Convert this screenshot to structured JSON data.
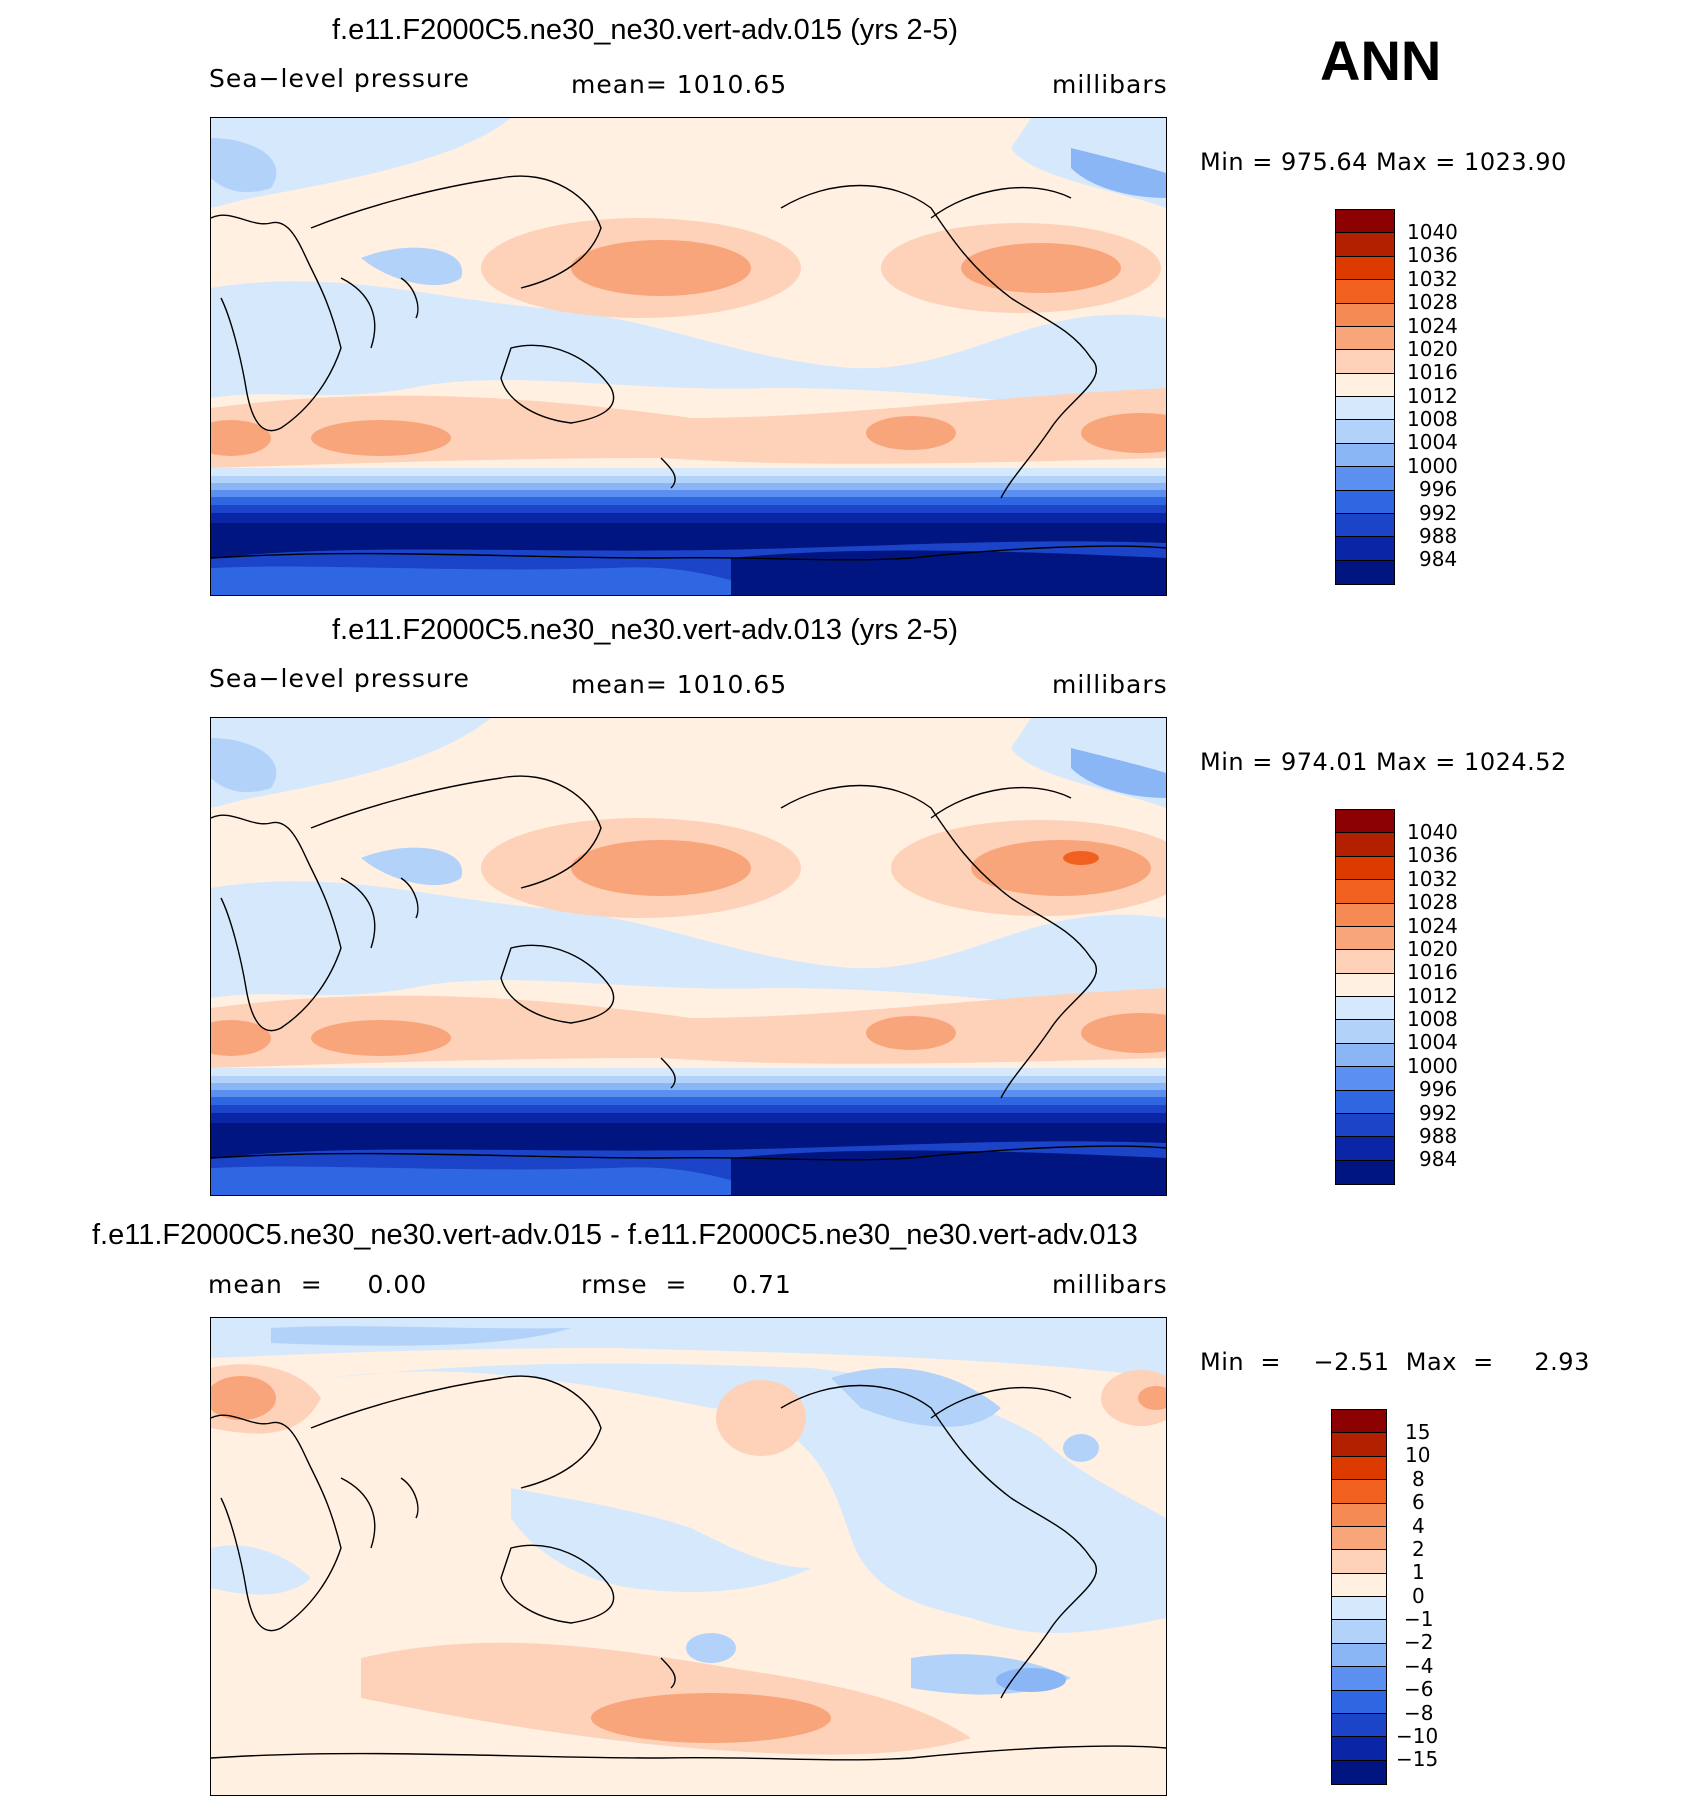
{
  "season": "ANN",
  "panels": [
    {
      "title": "f.e11.F2000C5.ne30_ne30.vert-adv.015 (yrs 2-5)",
      "left_label": "Sea−level pressure",
      "center_label": "mean=  1010.65",
      "units": "millibars",
      "minmax": "Min  =  975.64  Max  =  1023.90",
      "levels": [
        "1040",
        "1036",
        "1032",
        "1028",
        "1024",
        "1020",
        "1016",
        "1012",
        "1008",
        "1004",
        "1000",
        "996",
        "992",
        "988",
        "984"
      ],
      "colors": [
        "#8b0000",
        "#b22000",
        "#dd3a00",
        "#f26020",
        "#f58a55",
        "#f9a57c",
        "#fdd2b8",
        "#fff0e2",
        "#d6e9fc",
        "#b3d2fa",
        "#8ab6f6",
        "#5b8ff0",
        "#2f67e3",
        "#1b44c9",
        "#0a25a6",
        "#001580"
      ]
    },
    {
      "title": "f.e11.F2000C5.ne30_ne30.vert-adv.013 (yrs 2-5)",
      "left_label": "Sea−level pressure",
      "center_label": "mean=  1010.65",
      "units": "millibars",
      "minmax": "Min  =  974.01  Max  =  1024.52",
      "levels": [
        "1040",
        "1036",
        "1032",
        "1028",
        "1024",
        "1020",
        "1016",
        "1012",
        "1008",
        "1004",
        "1000",
        "996",
        "992",
        "988",
        "984"
      ],
      "colors": [
        "#8b0000",
        "#b22000",
        "#dd3a00",
        "#f26020",
        "#f58a55",
        "#f9a57c",
        "#fdd2b8",
        "#fff0e2",
        "#d6e9fc",
        "#b3d2fa",
        "#8ab6f6",
        "#5b8ff0",
        "#2f67e3",
        "#1b44c9",
        "#0a25a6",
        "#001580"
      ]
    },
    {
      "title": "f.e11.F2000C5.ne30_ne30.vert-adv.015 - f.e11.F2000C5.ne30_ne30.vert-adv.013",
      "left_label": "mean  =     0.00",
      "center_label": "rmse  =     0.71",
      "units": "millibars",
      "minmax": "Min  =    −2.51  Max  =     2.93",
      "levels": [
        "15",
        "10",
        "8",
        "6",
        "4",
        "2",
        "1",
        "0",
        "−1",
        "−2",
        "−4",
        "−6",
        "−8",
        "−10",
        "−15"
      ],
      "colors": [
        "#8b0000",
        "#b22000",
        "#dd3a00",
        "#f26020",
        "#f58a55",
        "#f9a57c",
        "#fdd2b8",
        "#fff0e2",
        "#d6e9fc",
        "#b3d2fa",
        "#8ab6f6",
        "#5b8ff0",
        "#2f67e3",
        "#1b44c9",
        "#0a25a6",
        "#001580"
      ]
    }
  ]
}
